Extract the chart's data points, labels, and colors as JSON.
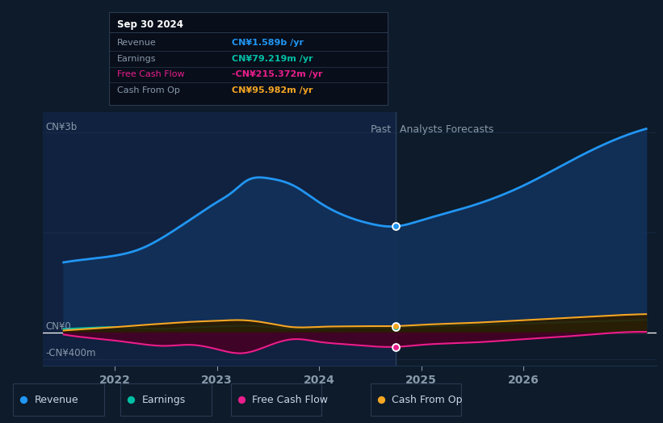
{
  "bg_color": "#0d1b2a",
  "past_bg_color": "#112240",
  "grid_color": "#1e3350",
  "zero_line_color": "#ffffff",
  "label_color": "#8899aa",
  "past_label": "Past",
  "forecast_label": "Analysts Forecasts",
  "ylabel_3b": "CN¥3b",
  "ylabel_0": "CN¥0",
  "ylabel_neg400": "-CN¥400m",
  "divider_x": 2024.75,
  "x_ticks": [
    2022,
    2023,
    2024,
    2025,
    2026
  ],
  "ylim": [
    -500,
    3300
  ],
  "xlim": [
    2021.3,
    2027.3
  ],
  "revenue": {
    "x": [
      2021.5,
      2021.75,
      2022.0,
      2022.25,
      2022.5,
      2022.75,
      2023.0,
      2023.15,
      2023.3,
      2023.5,
      2023.75,
      2024.0,
      2024.25,
      2024.5,
      2024.75,
      2025.0,
      2025.5,
      2026.0,
      2026.5,
      2027.0,
      2027.2
    ],
    "y": [
      1050,
      1100,
      1150,
      1250,
      1450,
      1700,
      1950,
      2100,
      2280,
      2310,
      2200,
      1950,
      1750,
      1630,
      1589,
      1680,
      1900,
      2200,
      2600,
      2950,
      3050
    ],
    "color": "#2196f3",
    "fill_color": "#12315a",
    "linewidth": 2.0,
    "marker_x": 2024.75,
    "marker_y": 1589
  },
  "earnings": {
    "x": [
      2021.5,
      2021.75,
      2022.0,
      2022.25,
      2022.5,
      2022.75,
      2023.0,
      2023.25,
      2023.5,
      2023.75,
      2024.0,
      2024.25,
      2024.5,
      2024.75,
      2025.0,
      2025.5,
      2026.0,
      2026.5,
      2027.0,
      2027.2
    ],
    "y": [
      55,
      70,
      80,
      65,
      55,
      75,
      90,
      100,
      85,
      55,
      60,
      70,
      75,
      79,
      90,
      110,
      135,
      158,
      180,
      190
    ],
    "color": "#00bfa5",
    "fill_color": "#003830",
    "linewidth": 1.5,
    "marker_x": 2024.75,
    "marker_y": 79
  },
  "free_cash_flow": {
    "x": [
      2021.5,
      2021.75,
      2022.0,
      2022.25,
      2022.5,
      2022.75,
      2023.0,
      2023.25,
      2023.5,
      2023.75,
      2024.0,
      2024.25,
      2024.5,
      2024.75,
      2025.0,
      2025.5,
      2026.0,
      2026.5,
      2027.0,
      2027.2
    ],
    "y": [
      -30,
      -80,
      -120,
      -170,
      -200,
      -185,
      -250,
      -310,
      -200,
      -100,
      -140,
      -175,
      -205,
      -215,
      -185,
      -150,
      -100,
      -50,
      5,
      10
    ],
    "color": "#e91e8c",
    "fill_color": "#450025",
    "linewidth": 1.5,
    "marker_x": 2024.75,
    "marker_y": -215
  },
  "cash_from_op": {
    "x": [
      2021.5,
      2021.75,
      2022.0,
      2022.25,
      2022.5,
      2022.75,
      2023.0,
      2023.25,
      2023.5,
      2023.75,
      2024.0,
      2024.25,
      2024.5,
      2024.75,
      2025.0,
      2025.5,
      2026.0,
      2026.5,
      2027.0,
      2027.2
    ],
    "y": [
      30,
      55,
      80,
      110,
      135,
      160,
      175,
      185,
      140,
      80,
      85,
      92,
      95,
      96,
      115,
      145,
      185,
      225,
      265,
      275
    ],
    "color": "#f5a623",
    "fill_color": "#2d1c00",
    "linewidth": 1.5,
    "marker_x": 2024.75,
    "marker_y": 96
  },
  "tooltip": {
    "title": "Sep 30 2024",
    "bg_color": "#080e1a",
    "border_color": "#2a3a50",
    "title_color": "#ffffff",
    "rows": [
      {
        "label": "Revenue",
        "value": "CN¥1.589b /yr",
        "label_color": "#8899aa",
        "value_color": "#2196f3"
      },
      {
        "label": "Earnings",
        "value": "CN¥79.219m /yr",
        "label_color": "#8899aa",
        "value_color": "#00bfa5"
      },
      {
        "label": "Free Cash Flow",
        "value": "-CN¥215.372m /yr",
        "label_color": "#e91e8c",
        "value_color": "#e91e8c"
      },
      {
        "label": "Cash From Op",
        "value": "CN¥95.982m /yr",
        "label_color": "#8899aa",
        "value_color": "#f5a623"
      }
    ]
  },
  "legend": [
    {
      "label": "Revenue",
      "color": "#2196f3"
    },
    {
      "label": "Earnings",
      "color": "#00bfa5"
    },
    {
      "label": "Free Cash Flow",
      "color": "#e91e8c"
    },
    {
      "label": "Cash From Op",
      "color": "#f5a623"
    }
  ]
}
